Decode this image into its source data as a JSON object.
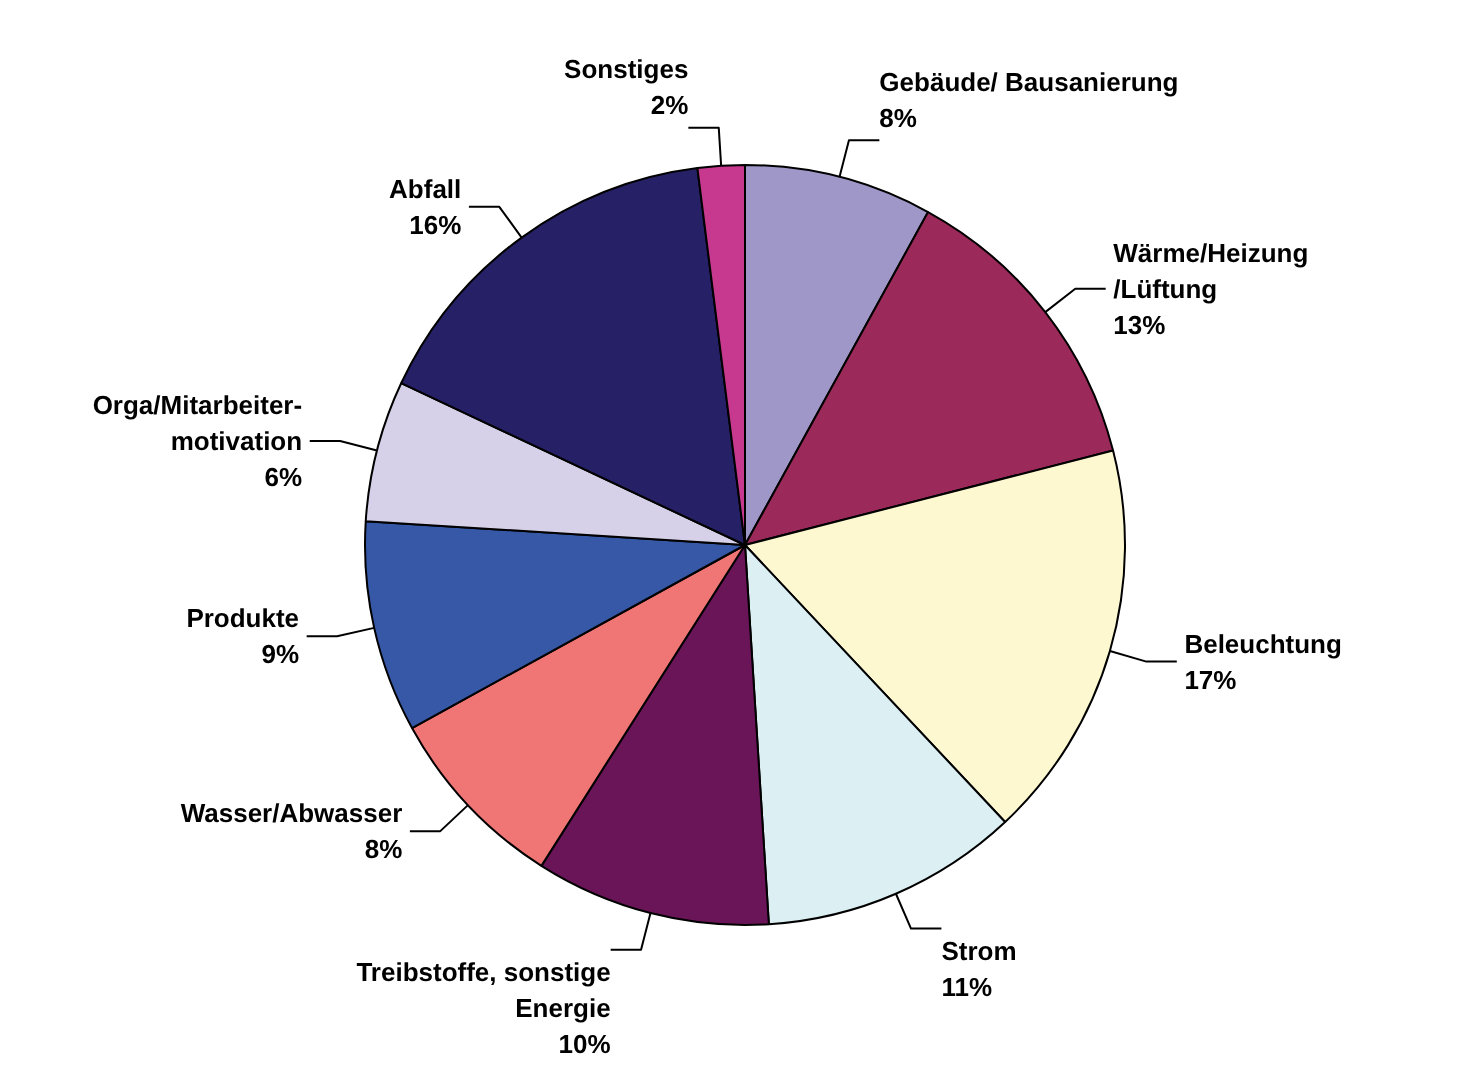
{
  "chart_data": {
    "type": "pie",
    "categories": [
      "Gebäude/ Bausanierung",
      "Wärme/Heizung\n/Lüftung",
      "Beleuchtung",
      "Strom",
      "Treibstoffe, sonstige\nEnergie",
      "Wasser/Abwasser",
      "Produkte",
      "Orga/Mitarbeiter-\nmotivation",
      "Abfall",
      "Sonstiges"
    ],
    "values": [
      8,
      13,
      17,
      11,
      10,
      8,
      9,
      6,
      16,
      2
    ],
    "colors": [
      "#9f97c8",
      "#9b2a5a",
      "#fdf8d0",
      "#dcf0f4",
      "#6a1558",
      "#ef7674",
      "#3658a6",
      "#d6d1e8",
      "#262066",
      "#c6398f"
    ],
    "value_labels": [
      "8%",
      "13%",
      "17%",
      "11%",
      "10%",
      "8%",
      "9%",
      "6%",
      "16%",
      "2%"
    ]
  }
}
